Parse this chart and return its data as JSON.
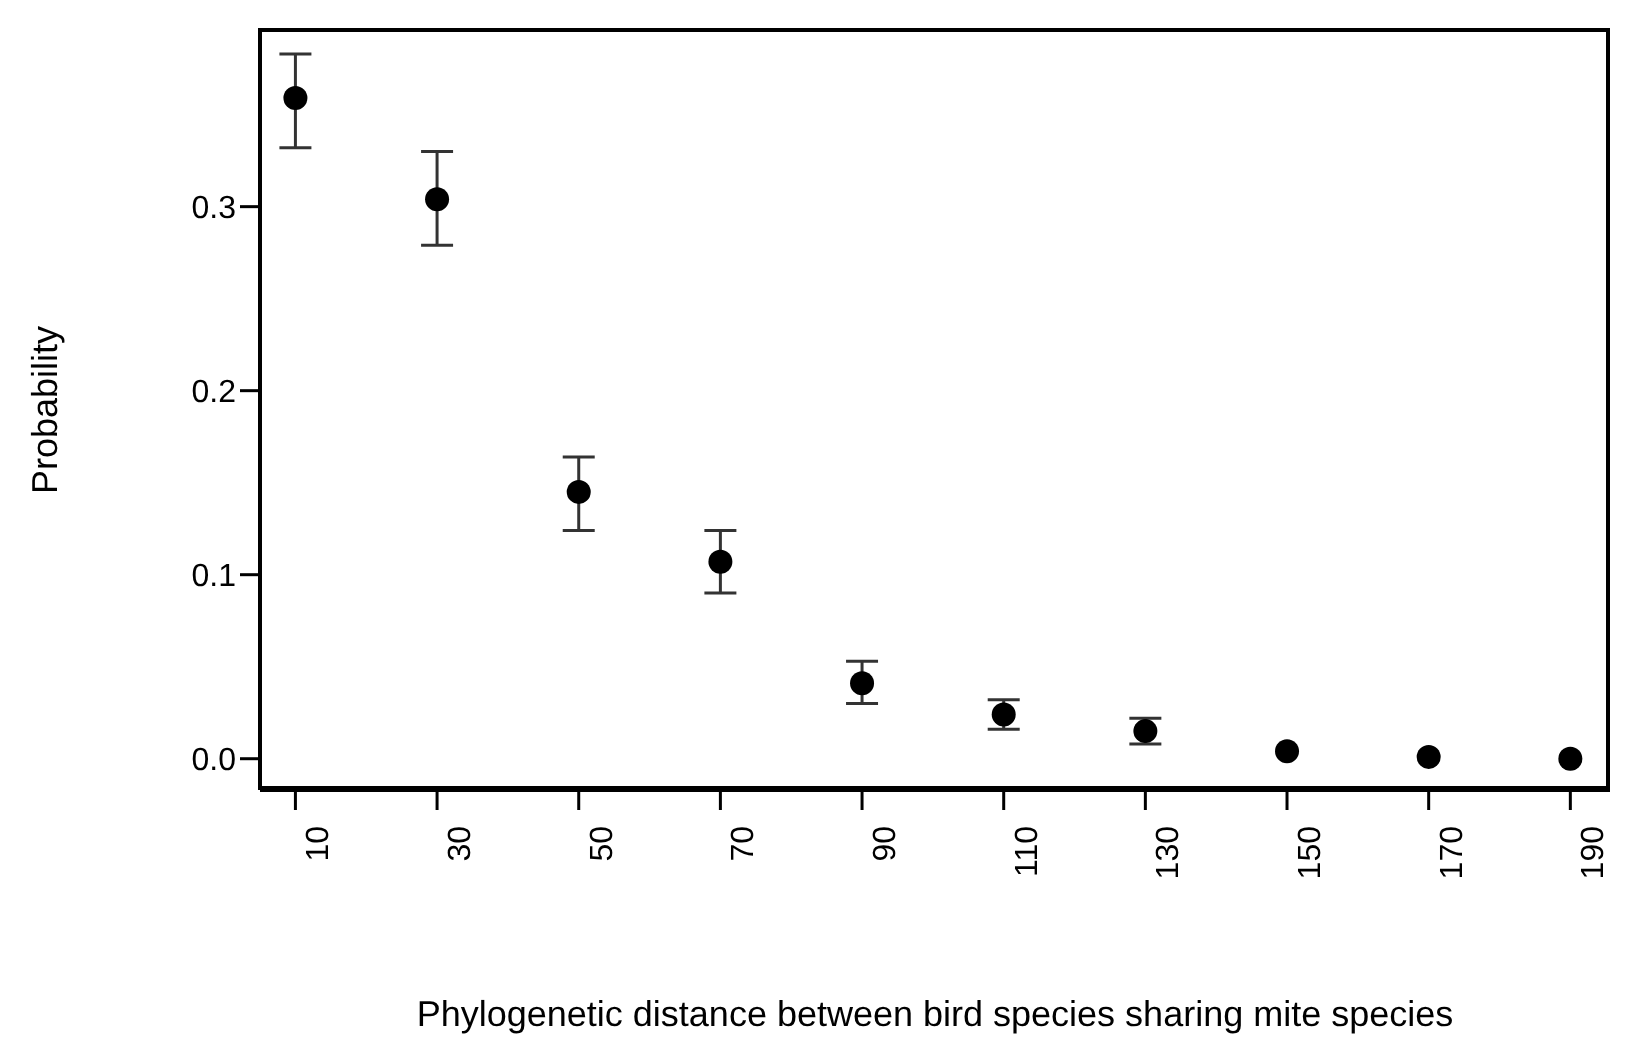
{
  "chart_data": {
    "type": "scatter",
    "xlabel": "Phylogenetic distance between bird species sharing mite species",
    "ylabel": "Probability",
    "categories": [
      "10",
      "30",
      "50",
      "70",
      "90",
      "110",
      "130",
      "150",
      "170",
      "190"
    ],
    "values": [
      0.359,
      0.304,
      0.145,
      0.107,
      0.041,
      0.024,
      0.015,
      0.004,
      0.001,
      0.0
    ],
    "errors": [
      [
        0.332,
        0.383
      ],
      [
        0.279,
        0.33
      ],
      [
        0.124,
        0.164
      ],
      [
        0.09,
        0.124
      ],
      [
        0.03,
        0.053
      ],
      [
        0.016,
        0.032
      ],
      [
        0.008,
        0.022
      ],
      null,
      null,
      null
    ],
    "color": "#000000",
    "marker": "circle",
    "grid": false,
    "legend": false,
    "ylim": [
      -0.017,
      0.396
    ],
    "yticks": [
      {
        "value": 0,
        "label": "0.0"
      },
      0.1,
      0.2,
      0.3
    ]
  }
}
